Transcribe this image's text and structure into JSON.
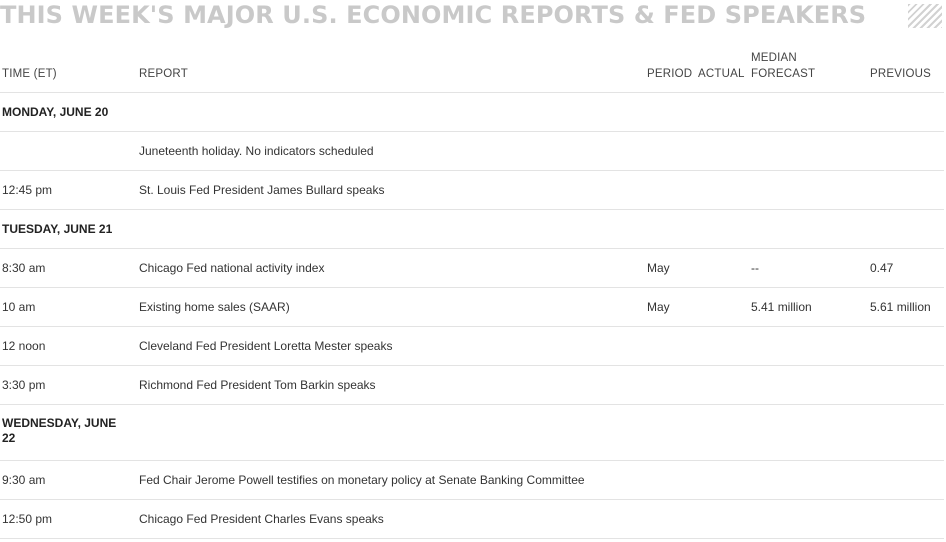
{
  "title": "THIS WEEK'S MAJOR U.S. ECONOMIC REPORTS & FED SPEAKERS",
  "columns": {
    "time": "TIME (ET)",
    "report": "REPORT",
    "period": "PERIOD",
    "actual": "ACTUAL",
    "median_line1": "MEDIAN",
    "median_line2": "FORECAST",
    "previous": "PREVIOUS"
  },
  "monday": {
    "label": "MONDAY, JUNE 20",
    "rows": [
      {
        "time": "",
        "report": "Juneteenth holiday. No indicators scheduled",
        "period": "",
        "actual": "",
        "median": "",
        "previous": ""
      },
      {
        "time": "12:45 pm",
        "report": "St. Louis Fed President James Bullard speaks",
        "period": "",
        "actual": "",
        "median": "",
        "previous": ""
      }
    ]
  },
  "tuesday": {
    "label": "TUESDAY, JUNE 21",
    "rows": [
      {
        "time": "8:30 am",
        "report": "Chicago Fed national activity index",
        "period": "May",
        "actual": "",
        "median": "--",
        "previous": "0.47"
      },
      {
        "time": "10 am",
        "report": "Existing home sales (SAAR)",
        "period": "May",
        "actual": "",
        "median": "5.41 million",
        "previous": "5.61 million"
      },
      {
        "time": "12 noon",
        "report": "Cleveland Fed President Loretta Mester speaks",
        "period": "",
        "actual": "",
        "median": "",
        "previous": ""
      },
      {
        "time": "3:30 pm",
        "report": "Richmond Fed President Tom Barkin speaks",
        "period": "",
        "actual": "",
        "median": "",
        "previous": ""
      }
    ]
  },
  "wednesday": {
    "label": "WEDNESDAY, JUNE 22",
    "rows": [
      {
        "time": "9:30 am",
        "report": "Fed Chair Jerome Powell testifies on monetary policy at Senate Banking Committee",
        "period": "",
        "actual": "",
        "median": "",
        "previous": ""
      },
      {
        "time": "12:50 pm",
        "report": "Chicago Fed President Charles Evans speaks",
        "period": "",
        "actual": "",
        "median": "",
        "previous": ""
      }
    ]
  }
}
